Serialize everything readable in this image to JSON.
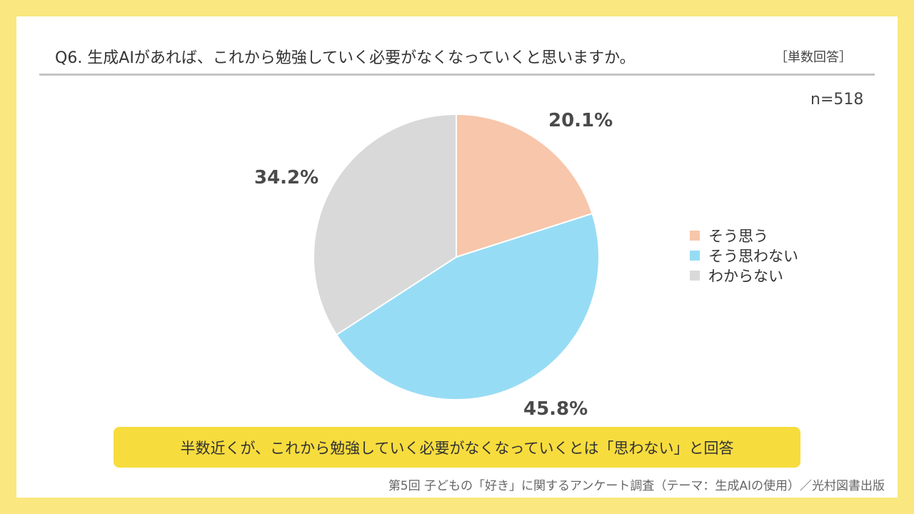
{
  "header": {
    "title": "Q6. 生成AIがあれば、これから勉強していく必要がなくなっていくと思いますか。",
    "answer_type": "［単数回答］"
  },
  "chart_data": {
    "type": "pie",
    "title": "Q6. 生成AIがあれば、これから勉強していく必要がなくなっていくと思いますか。",
    "sample_size": "n=518",
    "categories": [
      "そう思う",
      "そう思わない",
      "わからない"
    ],
    "values": [
      20.1,
      45.8,
      34.2
    ],
    "labels": [
      "20.1%",
      "45.8%",
      "34.2%"
    ],
    "colors": [
      "#f7c6ab",
      "#97dcf5",
      "#d9d9d9"
    ],
    "start": "12 o'clock, clockwise",
    "legend_position": "right"
  },
  "summary": "半数近くが、これから勉強していく必要がなくなっていくとは「思わない」と回答",
  "source": "第5回 子どもの「好き」に関するアンケート調査（テーマ：生成AIの使用）／光村図書出版",
  "colors": {
    "background": "#fae77f",
    "banner": "#f7dc3e"
  }
}
